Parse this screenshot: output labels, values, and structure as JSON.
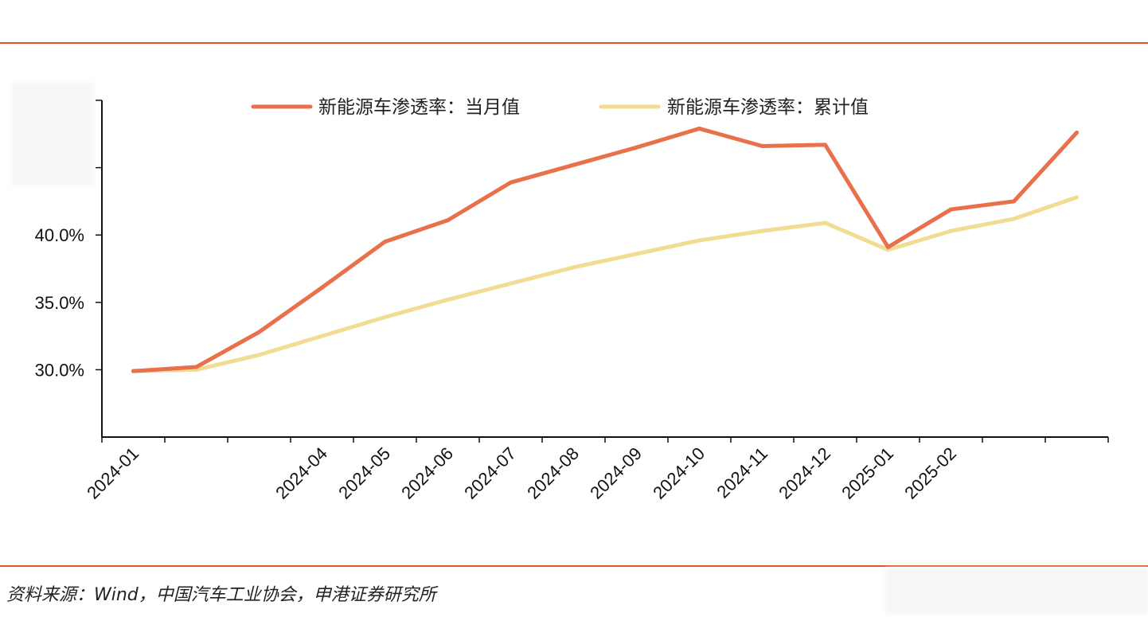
{
  "colors": {
    "accent": "#e0572e",
    "series_monthly": "#e8704a",
    "series_cumulative": "#f2dc94",
    "axis": "#111111"
  },
  "chart_data": {
    "type": "line",
    "x": [
      "2024-01",
      "2024-02",
      "2024-03",
      "2024-04",
      "2024-05",
      "2024-06",
      "2024-07",
      "2024-08",
      "2024-09",
      "2024-10",
      "2024-11",
      "2024-12",
      "2025-01",
      "2025-02",
      "2025-03",
      "2025-04"
    ],
    "x_tick_labels": [
      "2024-01",
      "",
      "",
      "2024-04",
      "2024-05",
      "2024-06",
      "2024-07",
      "2024-08",
      "2024-09",
      "2024-10",
      "2024-11",
      "2024-12",
      "2025-01",
      "2025-02",
      "",
      ""
    ],
    "series": [
      {
        "name": "新能源车渗透率：当月值",
        "values": [
          29.9,
          30.2,
          32.8,
          36.1,
          39.5,
          41.1,
          43.9,
          45.2,
          46.5,
          47.9,
          46.6,
          46.7,
          39.1,
          41.9,
          42.5,
          47.6
        ]
      },
      {
        "name": "新能源车渗透率：累计值",
        "values": [
          29.9,
          30.0,
          31.1,
          32.5,
          33.9,
          35.2,
          36.4,
          37.6,
          38.6,
          39.6,
          40.3,
          40.9,
          38.9,
          40.3,
          41.2,
          42.8
        ]
      }
    ],
    "y_tick_values": [
      30,
      35,
      40,
      45,
      50
    ],
    "y_tick_labels": [
      "30.0%",
      "35.0%",
      "40.0%",
      "",
      ""
    ],
    "ylim": [
      25,
      50
    ],
    "grid": false,
    "legend_position": "top"
  },
  "footer": {
    "source": "资料来源：Wind，中国汽车工业协会，申港证券研究所"
  }
}
